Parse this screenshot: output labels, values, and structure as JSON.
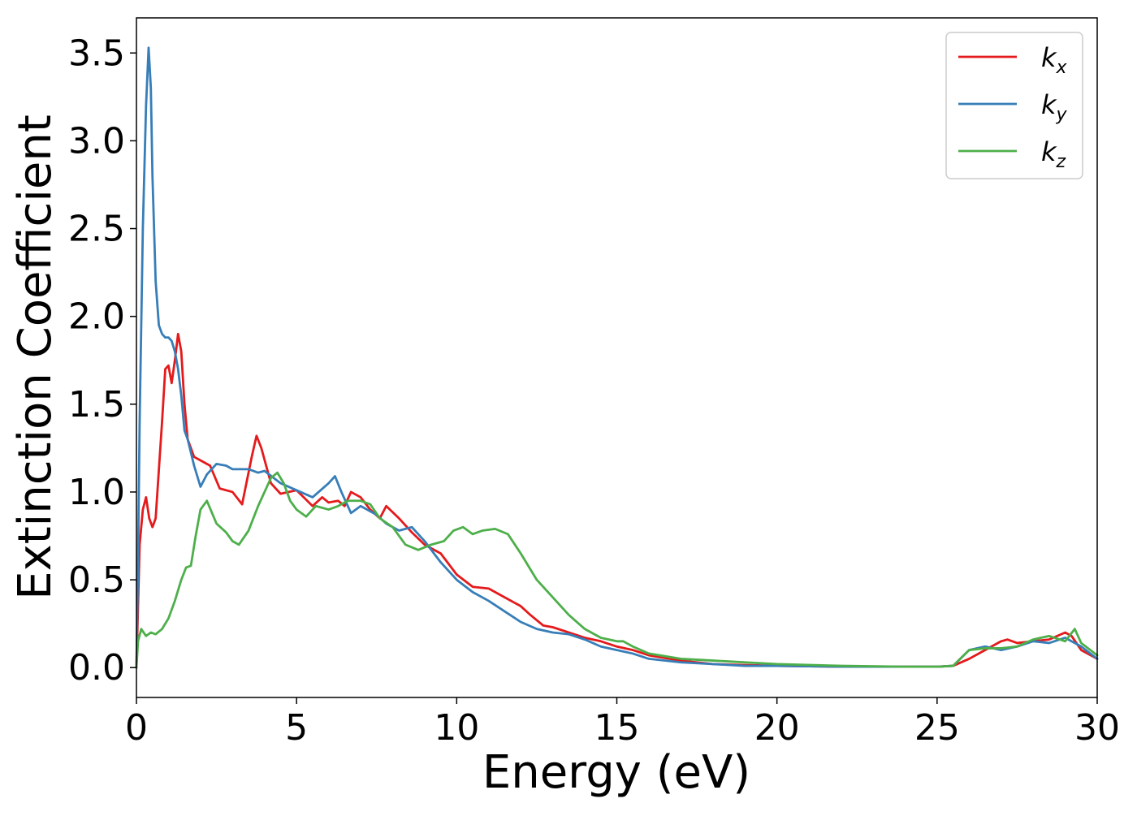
{
  "chart_data": {
    "type": "line",
    "title": "",
    "xlabel": "Energy (eV)",
    "ylabel": "Extinction Coefficient",
    "xlim": [
      0,
      30
    ],
    "ylim": [
      -0.17,
      3.7
    ],
    "xticks": [
      0,
      5,
      10,
      15,
      20,
      25,
      30
    ],
    "xtick_labels": [
      "0",
      "5",
      "10",
      "15",
      "20",
      "25",
      "30"
    ],
    "yticks": [
      0.0,
      0.5,
      1.0,
      1.5,
      2.0,
      2.5,
      3.0,
      3.5
    ],
    "ytick_labels": [
      "0.0",
      "0.5",
      "1.0",
      "1.5",
      "2.0",
      "2.5",
      "3.0",
      "3.5"
    ],
    "grid": false,
    "legend_position": "top-right",
    "series": [
      {
        "name": "k_x",
        "label_base": "k",
        "label_sub": "x",
        "color": "#e41a1c",
        "x": [
          0,
          0.1,
          0.2,
          0.3,
          0.4,
          0.5,
          0.6,
          0.8,
          0.9,
          1.0,
          1.1,
          1.2,
          1.3,
          1.4,
          1.5,
          1.6,
          1.7,
          1.8,
          2.0,
          2.3,
          2.6,
          3.0,
          3.3,
          3.6,
          3.75,
          3.9,
          4.2,
          4.5,
          5.0,
          5.5,
          5.8,
          6.0,
          6.3,
          6.5,
          6.7,
          7.0,
          7.3,
          7.6,
          7.8,
          8.2,
          8.6,
          9.0,
          9.5,
          10.0,
          10.5,
          11.0,
          11.5,
          12.0,
          12.3,
          12.7,
          13.0,
          13.5,
          14.0,
          14.5,
          15.0,
          15.5,
          16.0,
          17.0,
          18.0,
          19.0,
          20.0,
          22.0,
          24.0,
          25.0,
          25.5,
          26.0,
          26.5,
          27.0,
          27.2,
          27.5,
          28.0,
          28.5,
          29.0,
          29.2,
          29.5,
          30.0
        ],
        "y": [
          0.0,
          0.7,
          0.9,
          0.97,
          0.85,
          0.8,
          0.85,
          1.4,
          1.7,
          1.72,
          1.62,
          1.75,
          1.9,
          1.8,
          1.5,
          1.3,
          1.25,
          1.2,
          1.18,
          1.15,
          1.02,
          1.0,
          0.93,
          1.2,
          1.32,
          1.25,
          1.05,
          0.99,
          1.01,
          0.92,
          0.97,
          0.94,
          0.95,
          0.92,
          1.0,
          0.97,
          0.9,
          0.85,
          0.92,
          0.85,
          0.77,
          0.7,
          0.65,
          0.53,
          0.46,
          0.45,
          0.4,
          0.35,
          0.3,
          0.24,
          0.23,
          0.2,
          0.17,
          0.15,
          0.12,
          0.1,
          0.07,
          0.04,
          0.02,
          0.015,
          0.01,
          0.005,
          0.005,
          0.005,
          0.01,
          0.05,
          0.1,
          0.15,
          0.16,
          0.14,
          0.15,
          0.16,
          0.2,
          0.18,
          0.1,
          0.05
        ]
      },
      {
        "name": "k_y",
        "label_base": "k",
        "label_sub": "y",
        "color": "#377eb8",
        "x": [
          0,
          0.05,
          0.1,
          0.2,
          0.3,
          0.38,
          0.45,
          0.5,
          0.6,
          0.7,
          0.8,
          0.9,
          1.0,
          1.1,
          1.2,
          1.3,
          1.4,
          1.5,
          1.6,
          1.8,
          2.0,
          2.2,
          2.5,
          2.8,
          3.0,
          3.5,
          3.8,
          4.0,
          4.5,
          5.0,
          5.5,
          6.0,
          6.2,
          6.4,
          6.7,
          7.0,
          7.5,
          7.8,
          8.2,
          8.6,
          9.0,
          9.5,
          10.0,
          10.5,
          11.0,
          11.5,
          12.0,
          12.5,
          13.0,
          13.5,
          14.0,
          14.5,
          15.0,
          15.5,
          16.0,
          17.0,
          18.0,
          19.0,
          20.0,
          22.0,
          24.0,
          25.0,
          25.5,
          26.0,
          26.5,
          27.0,
          27.5,
          28.0,
          28.5,
          29.0,
          29.5,
          30.0
        ],
        "y": [
          0.0,
          0.6,
          1.4,
          2.5,
          3.2,
          3.53,
          3.3,
          2.8,
          2.2,
          1.95,
          1.9,
          1.88,
          1.88,
          1.86,
          1.8,
          1.7,
          1.55,
          1.35,
          1.3,
          1.15,
          1.03,
          1.1,
          1.16,
          1.15,
          1.13,
          1.13,
          1.11,
          1.12,
          1.05,
          1.01,
          0.97,
          1.05,
          1.09,
          1.0,
          0.88,
          0.92,
          0.87,
          0.82,
          0.78,
          0.8,
          0.72,
          0.6,
          0.5,
          0.43,
          0.38,
          0.32,
          0.26,
          0.22,
          0.2,
          0.19,
          0.16,
          0.12,
          0.1,
          0.08,
          0.05,
          0.03,
          0.02,
          0.01,
          0.01,
          0.005,
          0.005,
          0.005,
          0.01,
          0.1,
          0.12,
          0.1,
          0.12,
          0.15,
          0.14,
          0.17,
          0.12,
          0.05
        ]
      },
      {
        "name": "k_z",
        "label_base": "k",
        "label_sub": "z",
        "color": "#4daf4a",
        "x": [
          0,
          0.05,
          0.15,
          0.3,
          0.45,
          0.6,
          0.8,
          1.0,
          1.2,
          1.4,
          1.55,
          1.7,
          1.85,
          2.0,
          2.2,
          2.5,
          2.8,
          3.0,
          3.2,
          3.5,
          3.8,
          4.0,
          4.2,
          4.4,
          4.6,
          4.8,
          5.0,
          5.3,
          5.6,
          6.0,
          6.3,
          6.6,
          7.0,
          7.3,
          7.6,
          8.0,
          8.4,
          8.8,
          9.2,
          9.6,
          9.9,
          10.2,
          10.5,
          10.8,
          11.2,
          11.6,
          12.0,
          12.5,
          13.0,
          13.5,
          14.0,
          14.5,
          15.0,
          15.2,
          15.5,
          16.0,
          17.0,
          18.0,
          19.0,
          20.0,
          22.0,
          24.0,
          25.0,
          25.5,
          26.0,
          26.5,
          27.0,
          27.5,
          28.0,
          28.5,
          29.0,
          29.3,
          29.5,
          30.0
        ],
        "y": [
          0.0,
          0.15,
          0.22,
          0.18,
          0.2,
          0.19,
          0.22,
          0.28,
          0.38,
          0.5,
          0.57,
          0.58,
          0.75,
          0.9,
          0.95,
          0.82,
          0.77,
          0.72,
          0.7,
          0.78,
          0.92,
          1.0,
          1.08,
          1.11,
          1.05,
          0.95,
          0.9,
          0.86,
          0.92,
          0.9,
          0.92,
          0.95,
          0.95,
          0.93,
          0.85,
          0.8,
          0.7,
          0.67,
          0.7,
          0.72,
          0.78,
          0.8,
          0.76,
          0.78,
          0.79,
          0.76,
          0.65,
          0.5,
          0.4,
          0.3,
          0.22,
          0.17,
          0.15,
          0.15,
          0.12,
          0.08,
          0.05,
          0.04,
          0.03,
          0.02,
          0.01,
          0.005,
          0.005,
          0.01,
          0.1,
          0.11,
          0.11,
          0.12,
          0.16,
          0.18,
          0.15,
          0.22,
          0.14,
          0.07
        ]
      }
    ]
  }
}
